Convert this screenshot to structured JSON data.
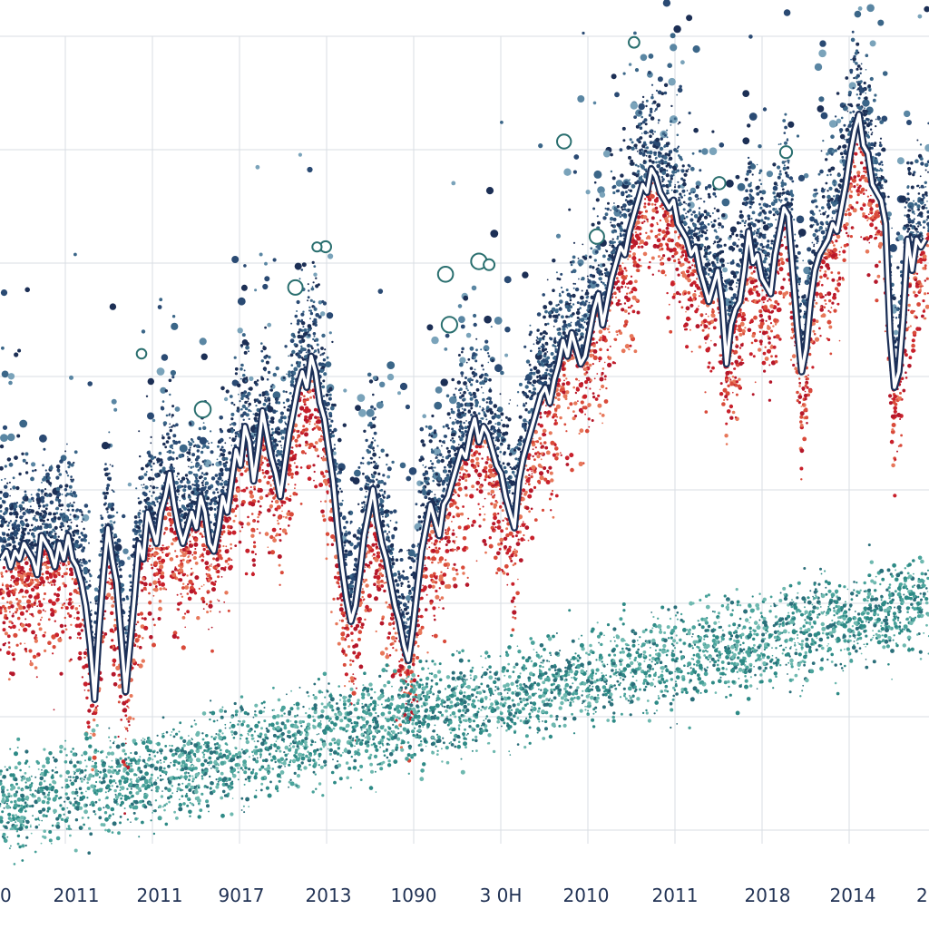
{
  "chart_data": {
    "type": "line",
    "title": "",
    "xlabel": "",
    "ylabel": "",
    "grid": true,
    "legend": "none",
    "x_tick_labels": [
      "0",
      "2011",
      "2011",
      "9017",
      "2013",
      "1090",
      "3 0H",
      "2010",
      "2011",
      "2018",
      "2014",
      "2"
    ],
    "ylim": [
      0,
      100
    ],
    "series": [
      {
        "values": [
          33,
          34,
          32,
          34,
          33,
          35,
          34,
          33,
          31,
          36,
          35,
          34,
          32,
          35,
          33,
          36,
          33,
          32,
          30,
          27,
          22,
          15,
          24,
          31,
          37,
          33,
          30,
          23,
          16,
          22,
          28,
          35,
          33,
          39,
          37,
          35,
          39,
          41,
          44,
          40,
          37,
          35,
          37,
          39,
          37,
          41,
          39,
          35,
          34,
          37,
          41,
          39,
          43,
          47,
          45,
          50,
          48,
          43,
          47,
          52,
          49,
          46,
          44,
          41,
          45,
          49,
          52,
          55,
          57,
          55,
          59,
          57,
          53,
          51,
          47,
          43,
          37,
          32,
          28,
          25,
          27,
          31,
          36,
          39,
          42,
          38,
          35,
          33,
          30,
          27,
          25,
          22,
          20,
          24,
          29,
          34,
          37,
          40,
          38,
          36,
          40,
          41,
          43,
          45,
          47,
          46,
          49,
          51,
          48,
          50,
          49,
          47,
          45,
          44,
          41,
          39,
          37,
          43,
          46,
          48,
          50,
          52,
          54,
          55,
          53,
          56,
          58,
          61,
          59,
          62,
          60,
          58,
          59,
          62,
          65,
          67,
          63,
          66,
          69,
          71,
          73,
          72,
          75,
          77,
          79,
          81,
          80,
          83,
          82,
          80,
          79,
          78,
          79,
          76,
          75,
          74,
          72,
          73,
          70,
          68,
          66,
          68,
          70,
          66,
          58,
          63,
          65,
          66,
          70,
          75,
          71,
          72,
          69,
          68,
          67,
          72,
          75,
          78,
          77,
          70,
          63,
          57,
          60,
          66,
          70,
          72,
          73,
          74,
          76,
          75,
          78,
          81,
          85,
          88,
          90,
          86,
          85,
          81,
          80,
          79,
          76,
          62,
          55,
          57,
          64,
          74,
          70,
          74,
          73,
          74
        ]
      }
    ]
  }
}
